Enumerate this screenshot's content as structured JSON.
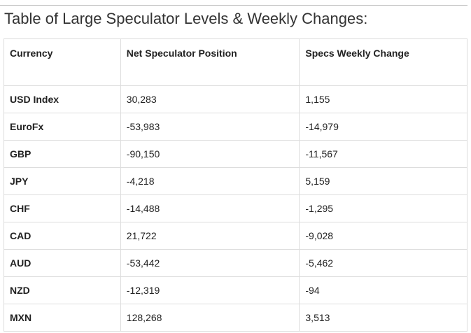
{
  "title": "Table of Large Speculator Levels & Weekly Changes:",
  "table": {
    "header": [
      "Currency",
      "Net Speculator Position",
      "Specs Weekly Change"
    ],
    "rows": [
      [
        "USD Index",
        "30,283",
        "1,155"
      ],
      [
        "EuroFx",
        "-53,983",
        "-14,979"
      ],
      [
        "GBP",
        "-90,150",
        "-11,567"
      ],
      [
        "JPY",
        "-4,218",
        "5,159"
      ],
      [
        "CHF",
        "-14,488",
        "-1,295"
      ],
      [
        "CAD",
        "21,722",
        "-9,028"
      ],
      [
        "AUD",
        "-53,442",
        "-5,462"
      ],
      [
        "NZD",
        "-12,319",
        "-94"
      ],
      [
        "MXN",
        "128,268",
        "3,513"
      ]
    ]
  }
}
